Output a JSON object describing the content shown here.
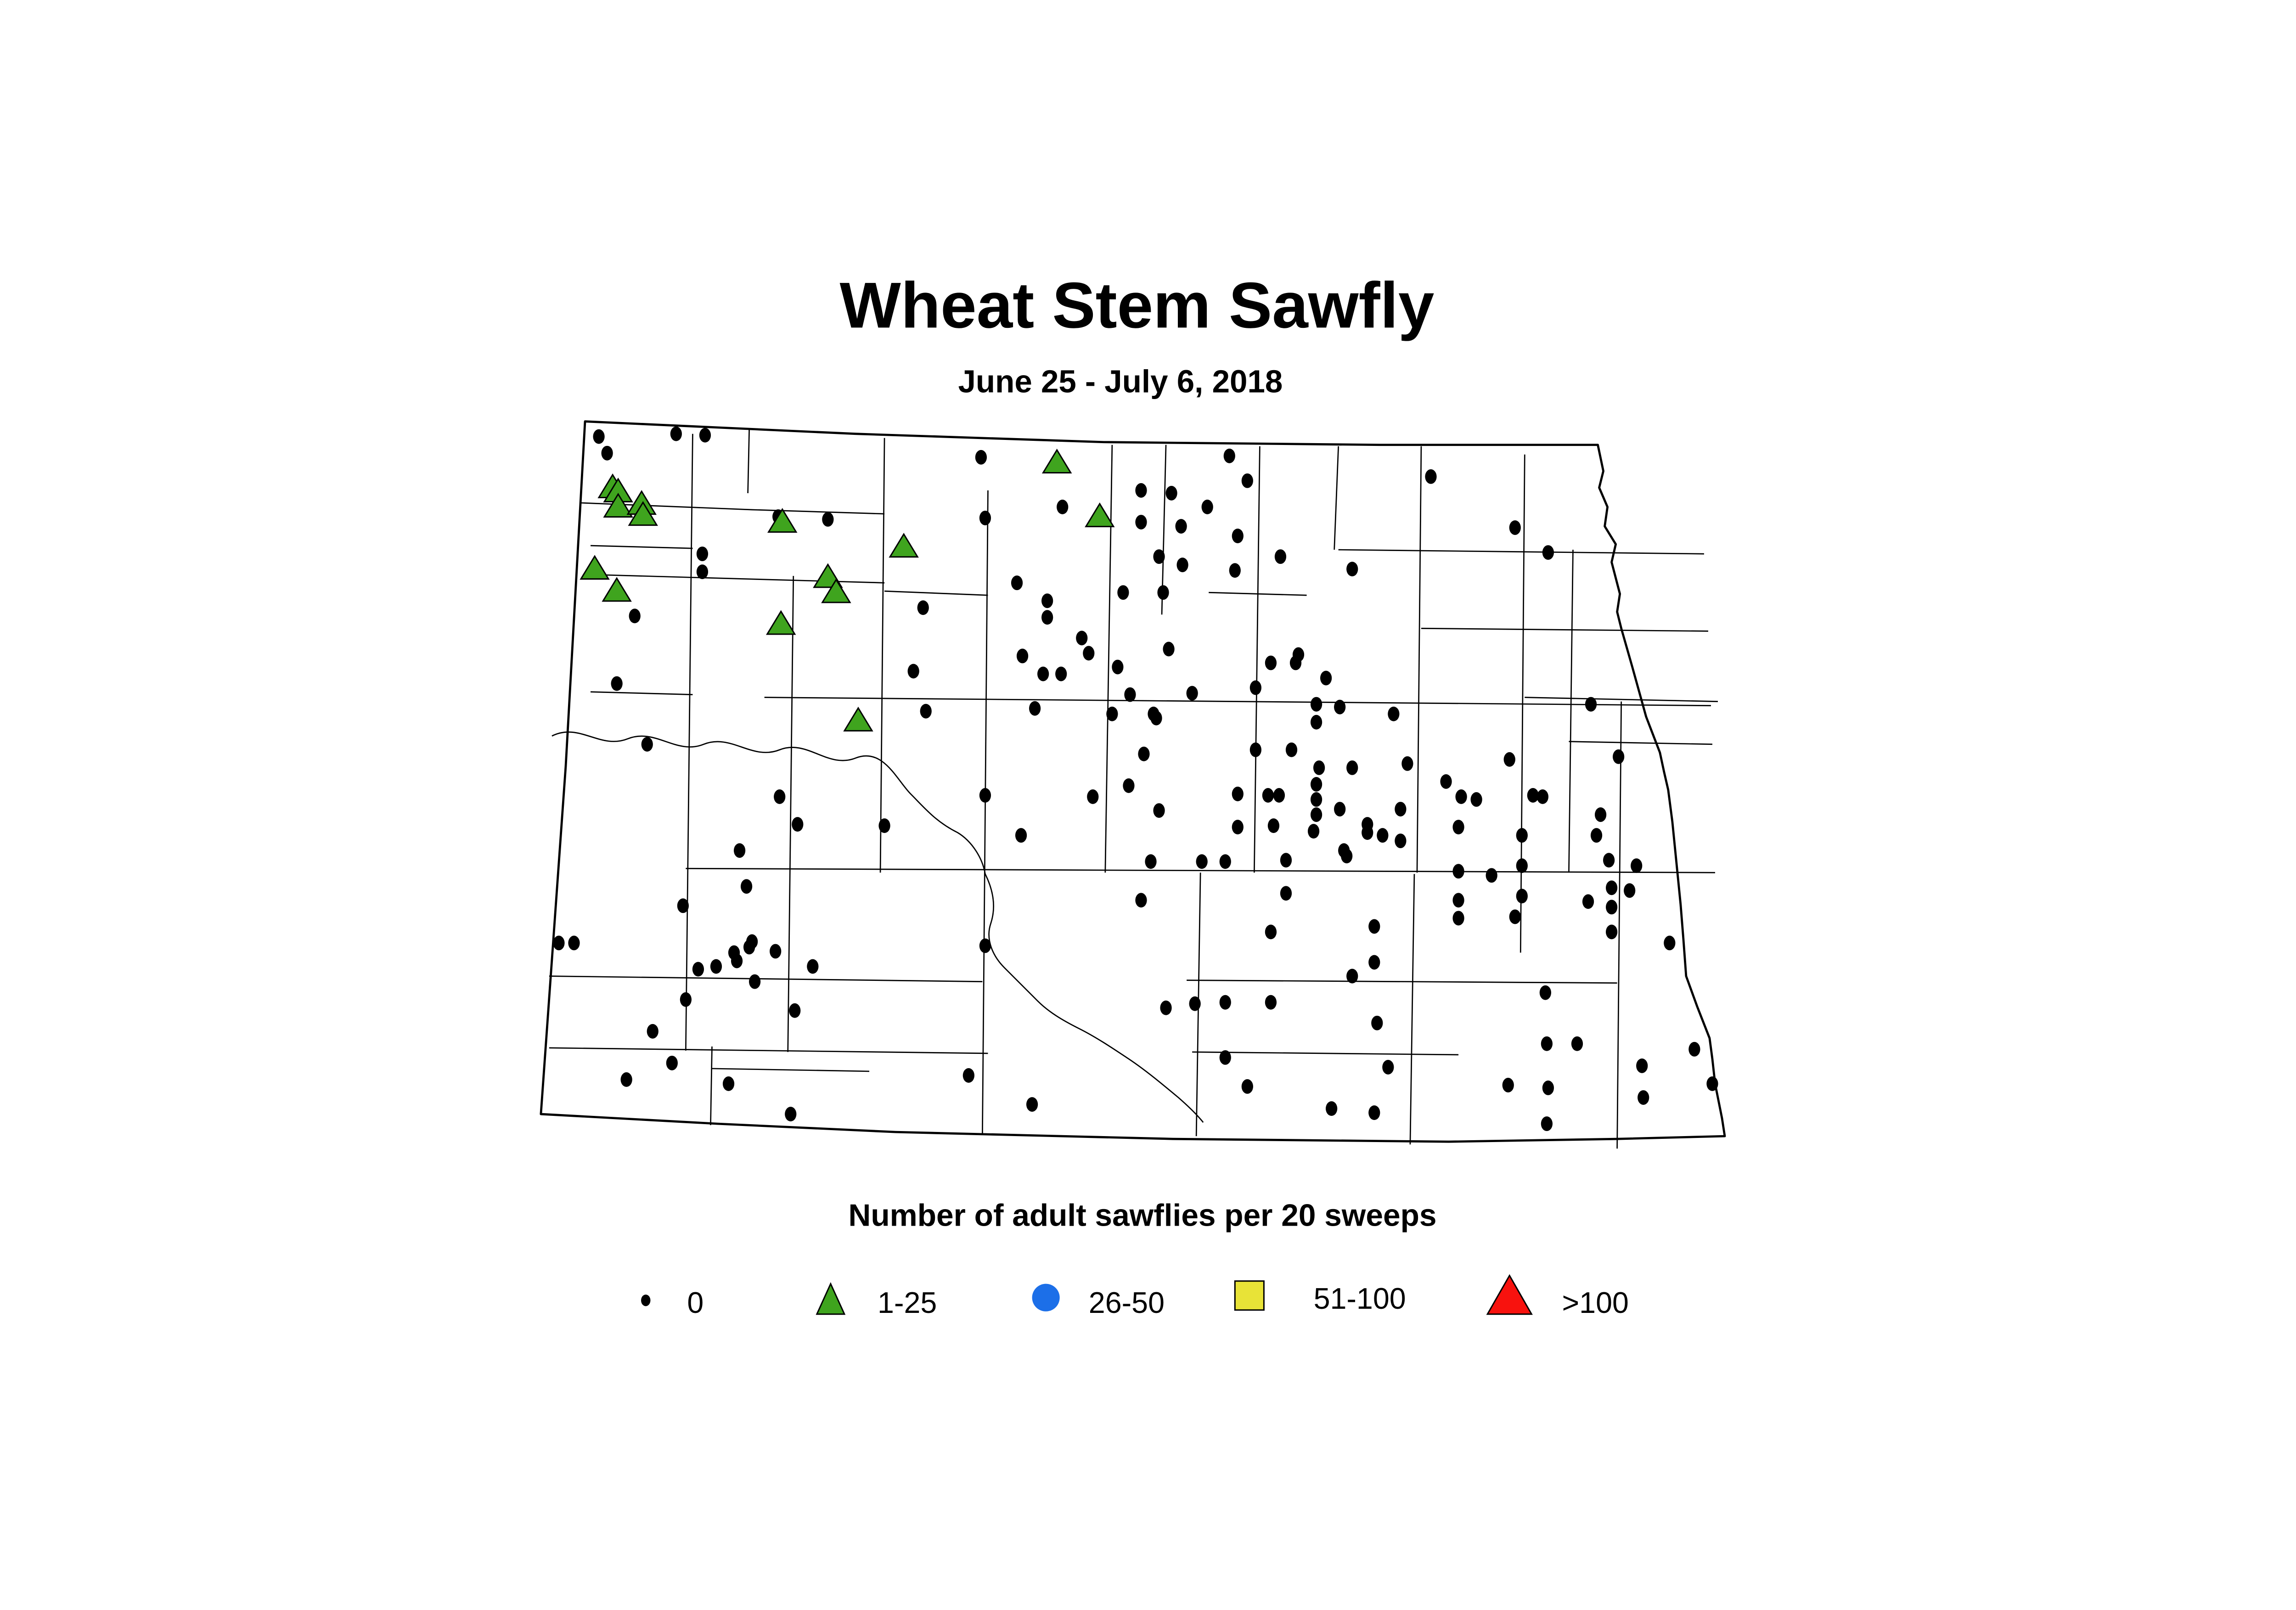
{
  "title": {
    "text": "Wheat Stem Sawfly"
  },
  "subtitle": {
    "text": "June 25 - July 6, 2018"
  },
  "legend": {
    "title": "Number of adult sawflies per 20 sweeps",
    "items": [
      {
        "label": "0",
        "shape": "dot",
        "color": "#000000"
      },
      {
        "label": "1-25",
        "shape": "triangle",
        "color": "#3FA41E"
      },
      {
        "label": "26-50",
        "shape": "circle",
        "color": "#1C6FE8"
      },
      {
        "label": "51-100",
        "shape": "square",
        "color": "#E8E337"
      },
      {
        "label": ">100",
        "shape": "triangle-large",
        "color": "#F8120E"
      }
    ]
  },
  "chart_data": {
    "type": "scatter",
    "title": "Wheat Stem Sawfly",
    "subtitle": "June 25 - July 6, 2018",
    "region": "North Dakota county map",
    "units": "Number of adult sawflies per 20 sweeps",
    "legend_position": "bottom",
    "series": [
      {
        "name": "0",
        "marker": "black-dot",
        "points": [
          [
            434,
            171
          ],
          [
            440,
            183
          ],
          [
            490,
            169
          ],
          [
            511,
            170
          ],
          [
            711,
            186
          ],
          [
            770,
            222
          ],
          [
            714,
            230
          ],
          [
            564,
            229
          ],
          [
            600,
            231
          ],
          [
            509,
            256
          ],
          [
            509,
            269
          ],
          [
            737,
            277
          ],
          [
            460,
            301
          ],
          [
            669,
            295
          ],
          [
            447,
            350
          ],
          [
            469,
            394
          ],
          [
            891,
            185
          ],
          [
            904,
            203
          ],
          [
            849,
            212
          ],
          [
            875,
            222
          ],
          [
            827,
            210
          ],
          [
            856,
            236
          ],
          [
            897,
            243
          ],
          [
            827,
            233
          ],
          [
            1037,
            200
          ],
          [
            1098,
            237
          ],
          [
            1122,
            255
          ],
          [
            840,
            258
          ],
          [
            857,
            264
          ],
          [
            895,
            268
          ],
          [
            928,
            258
          ],
          [
            980,
            267
          ],
          [
            814,
            284
          ],
          [
            843,
            284
          ],
          [
            759,
            290
          ],
          [
            759,
            302
          ],
          [
            847,
            325
          ],
          [
            921,
            335
          ],
          [
            939,
            335
          ],
          [
            941,
            329
          ],
          [
            961,
            346
          ],
          [
            910,
            353
          ],
          [
            864,
            357
          ],
          [
            954,
            365
          ],
          [
            971,
            367
          ],
          [
            954,
            378
          ],
          [
            1010,
            372
          ],
          [
            1153,
            365
          ],
          [
            836,
            372
          ],
          [
            829,
            401
          ],
          [
            910,
            398
          ],
          [
            936,
            398
          ],
          [
            956,
            411
          ],
          [
            980,
            411
          ],
          [
            1020,
            408
          ],
          [
            1094,
            405
          ],
          [
            1173,
            403
          ],
          [
            1048,
            421
          ],
          [
            784,
            317
          ],
          [
            789,
            328
          ],
          [
            810,
            338
          ],
          [
            741,
            330
          ],
          [
            662,
            341
          ],
          [
            756,
            343
          ],
          [
            769,
            343
          ],
          [
            819,
            358
          ],
          [
            671,
            370
          ],
          [
            750,
            368
          ],
          [
            806,
            372
          ],
          [
            838,
            375
          ],
          [
            565,
            432
          ],
          [
            578,
            452
          ],
          [
            536,
            471
          ],
          [
            641,
            453
          ],
          [
            714,
            431
          ],
          [
            740,
            460
          ],
          [
            792,
            432
          ],
          [
            818,
            424
          ],
          [
            541,
            497
          ],
          [
            495,
            511
          ],
          [
            405,
            538
          ],
          [
            416,
            538
          ],
          [
            545,
            537
          ],
          [
            543,
            541
          ],
          [
            532,
            545
          ],
          [
            534,
            551
          ],
          [
            519,
            555
          ],
          [
            506,
            557
          ],
          [
            547,
            566
          ],
          [
            562,
            544
          ],
          [
            589,
            555
          ],
          [
            714,
            540
          ],
          [
            497,
            579
          ],
          [
            576,
            587
          ],
          [
            473,
            602
          ],
          [
            487,
            625
          ],
          [
            454,
            637
          ],
          [
            528,
            640
          ],
          [
            573,
            662
          ],
          [
            702,
            634
          ],
          [
            748,
            655
          ],
          [
            897,
            430
          ],
          [
            919,
            431
          ],
          [
            927,
            431
          ],
          [
            954,
            423
          ],
          [
            954,
            434
          ],
          [
            954,
            445
          ],
          [
            971,
            441
          ],
          [
            1015,
            441
          ],
          [
            1059,
            432
          ],
          [
            1070,
            434
          ],
          [
            1111,
            431
          ],
          [
            1118,
            432
          ],
          [
            1160,
            445
          ],
          [
            840,
            442
          ],
          [
            897,
            454
          ],
          [
            923,
            453
          ],
          [
            952,
            457
          ],
          [
            991,
            452
          ],
          [
            991,
            458
          ],
          [
            1002,
            460
          ],
          [
            1015,
            464
          ],
          [
            1057,
            454
          ],
          [
            1103,
            460
          ],
          [
            1157,
            460
          ],
          [
            834,
            479
          ],
          [
            871,
            479
          ],
          [
            888,
            479
          ],
          [
            932,
            478
          ],
          [
            974,
            471
          ],
          [
            976,
            475
          ],
          [
            1057,
            486
          ],
          [
            1081,
            489
          ],
          [
            1103,
            482
          ],
          [
            1166,
            478
          ],
          [
            1186,
            482
          ],
          [
            932,
            502
          ],
          [
            827,
            507
          ],
          [
            1057,
            507
          ],
          [
            1103,
            504
          ],
          [
            1168,
            498
          ],
          [
            1181,
            500
          ],
          [
            1151,
            508
          ],
          [
            1168,
            512
          ],
          [
            921,
            530
          ],
          [
            1057,
            520
          ],
          [
            1098,
            519
          ],
          [
            1168,
            530
          ],
          [
            1210,
            538
          ],
          [
            996,
            526
          ],
          [
            996,
            552
          ],
          [
            980,
            562
          ],
          [
            1120,
            574
          ],
          [
            845,
            585
          ],
          [
            866,
            582
          ],
          [
            888,
            581
          ],
          [
            921,
            581
          ],
          [
            998,
            596
          ],
          [
            1121,
            611
          ],
          [
            1143,
            611
          ],
          [
            1228,
            615
          ],
          [
            1190,
            627
          ],
          [
            1241,
            640
          ],
          [
            1093,
            641
          ],
          [
            1122,
            643
          ],
          [
            1191,
            650
          ],
          [
            888,
            621
          ],
          [
            1006,
            628
          ],
          [
            904,
            642
          ],
          [
            965,
            658
          ],
          [
            996,
            661
          ],
          [
            1121,
            669
          ]
        ]
      },
      {
        "name": "1-25",
        "marker": "green-triangle",
        "points": [
          [
            444,
            207
          ],
          [
            448,
            210
          ],
          [
            448,
            221
          ],
          [
            465,
            219
          ],
          [
            466,
            227
          ],
          [
            766,
            189
          ],
          [
            797,
            228
          ],
          [
            431,
            266
          ],
          [
            447,
            282
          ],
          [
            567,
            232
          ],
          [
            655,
            250
          ],
          [
            600,
            272
          ],
          [
            606,
            283
          ],
          [
            566,
            306
          ],
          [
            622,
            376
          ]
        ]
      },
      {
        "name": "26-50",
        "marker": "blue-circle",
        "points": []
      },
      {
        "name": "51-100",
        "marker": "yellow-square",
        "points": []
      },
      {
        "name": ">100",
        "marker": "red-triangle",
        "points": []
      }
    ]
  }
}
